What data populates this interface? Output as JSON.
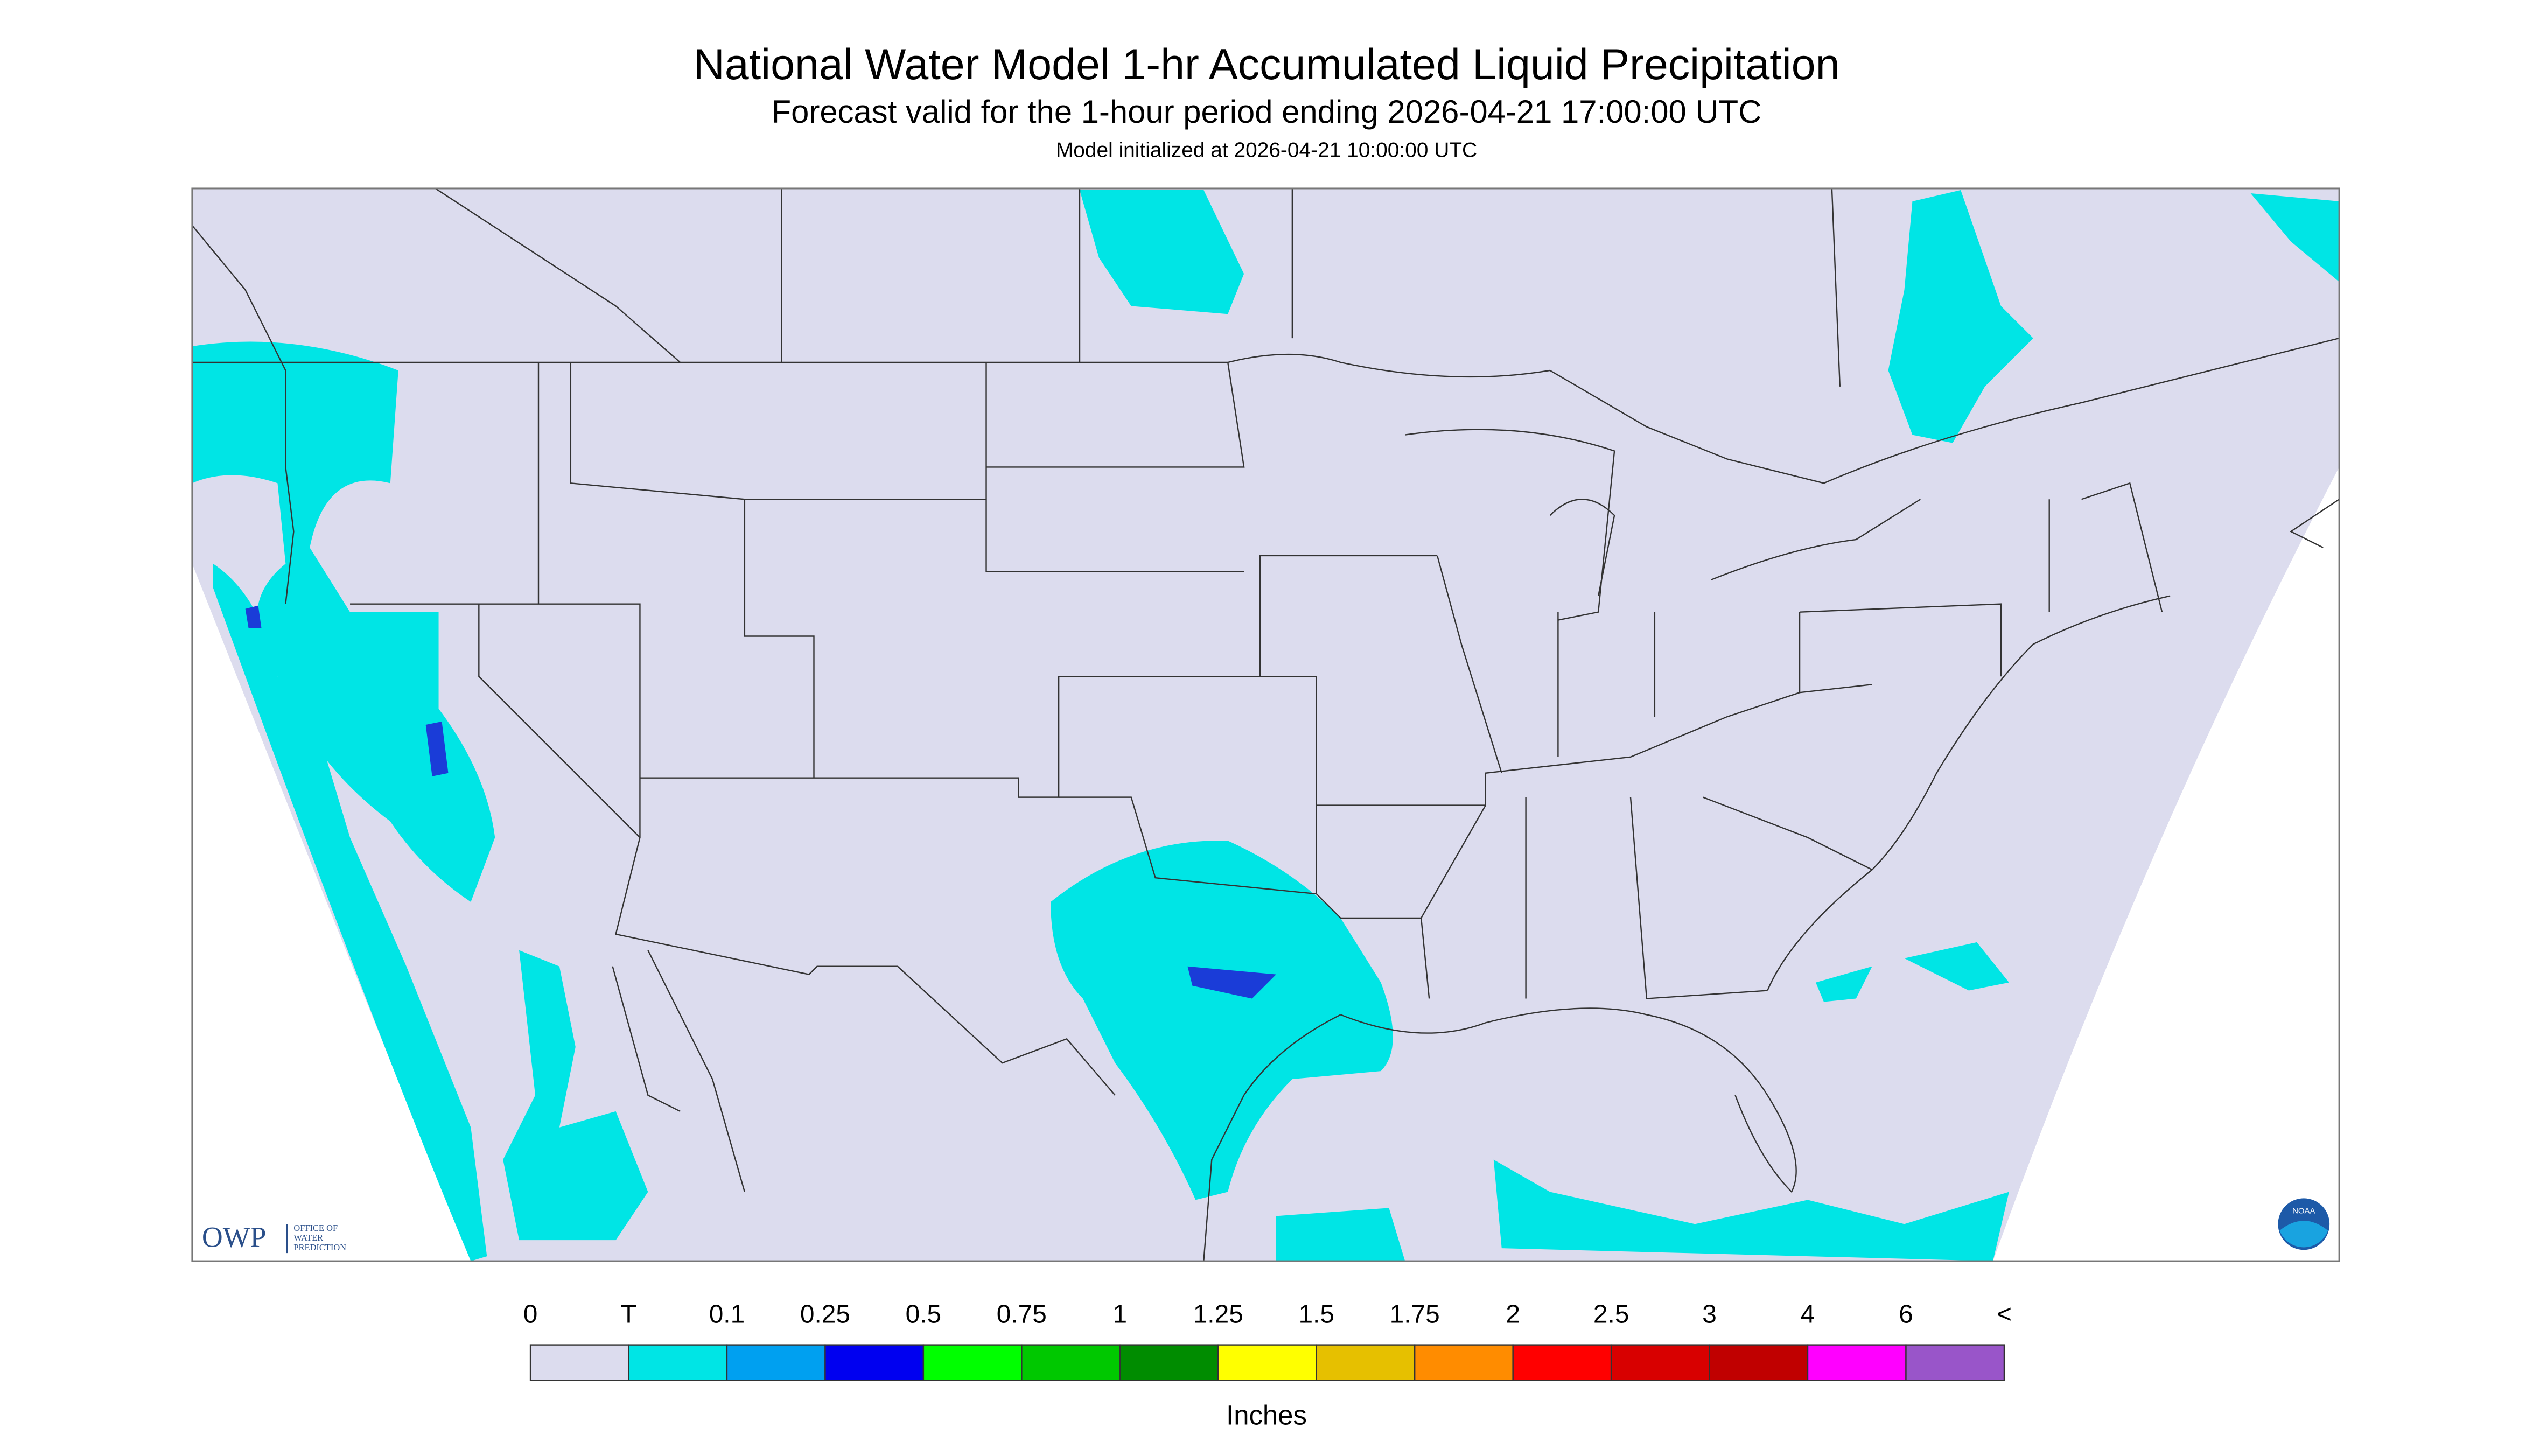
{
  "header": {
    "title": "National Water Model 1-hr Accumulated Liquid Precipitation",
    "subtitle": "Forecast valid for the 1-hour period ending 2026-04-21 17:00:00 UTC",
    "note": "Model initialized at 2026-04-21 10:00:00 UTC"
  },
  "logos": {
    "owp": "OWP",
    "owp_name": [
      "OFFICE OF",
      "WATER",
      "PREDICTION"
    ],
    "noaa": "NOAA"
  },
  "legend": {
    "labels": [
      "0",
      "T",
      "0.1",
      "0.25",
      "0.5",
      "0.75",
      "1",
      "1.25",
      "1.5",
      "1.75",
      "2",
      "2.5",
      "3",
      "4",
      "6",
      "<"
    ],
    "colors": [
      "#dcdcee",
      "#00e5e5",
      "#00a0f0",
      "#0000f0",
      "#00ff00",
      "#00c800",
      "#008c00",
      "#ffff00",
      "#e6c000",
      "#ff8c00",
      "#ff0000",
      "#d80000",
      "#c00000",
      "#ff00ff",
      "#9955c9"
    ],
    "unit": "Inches"
  }
}
